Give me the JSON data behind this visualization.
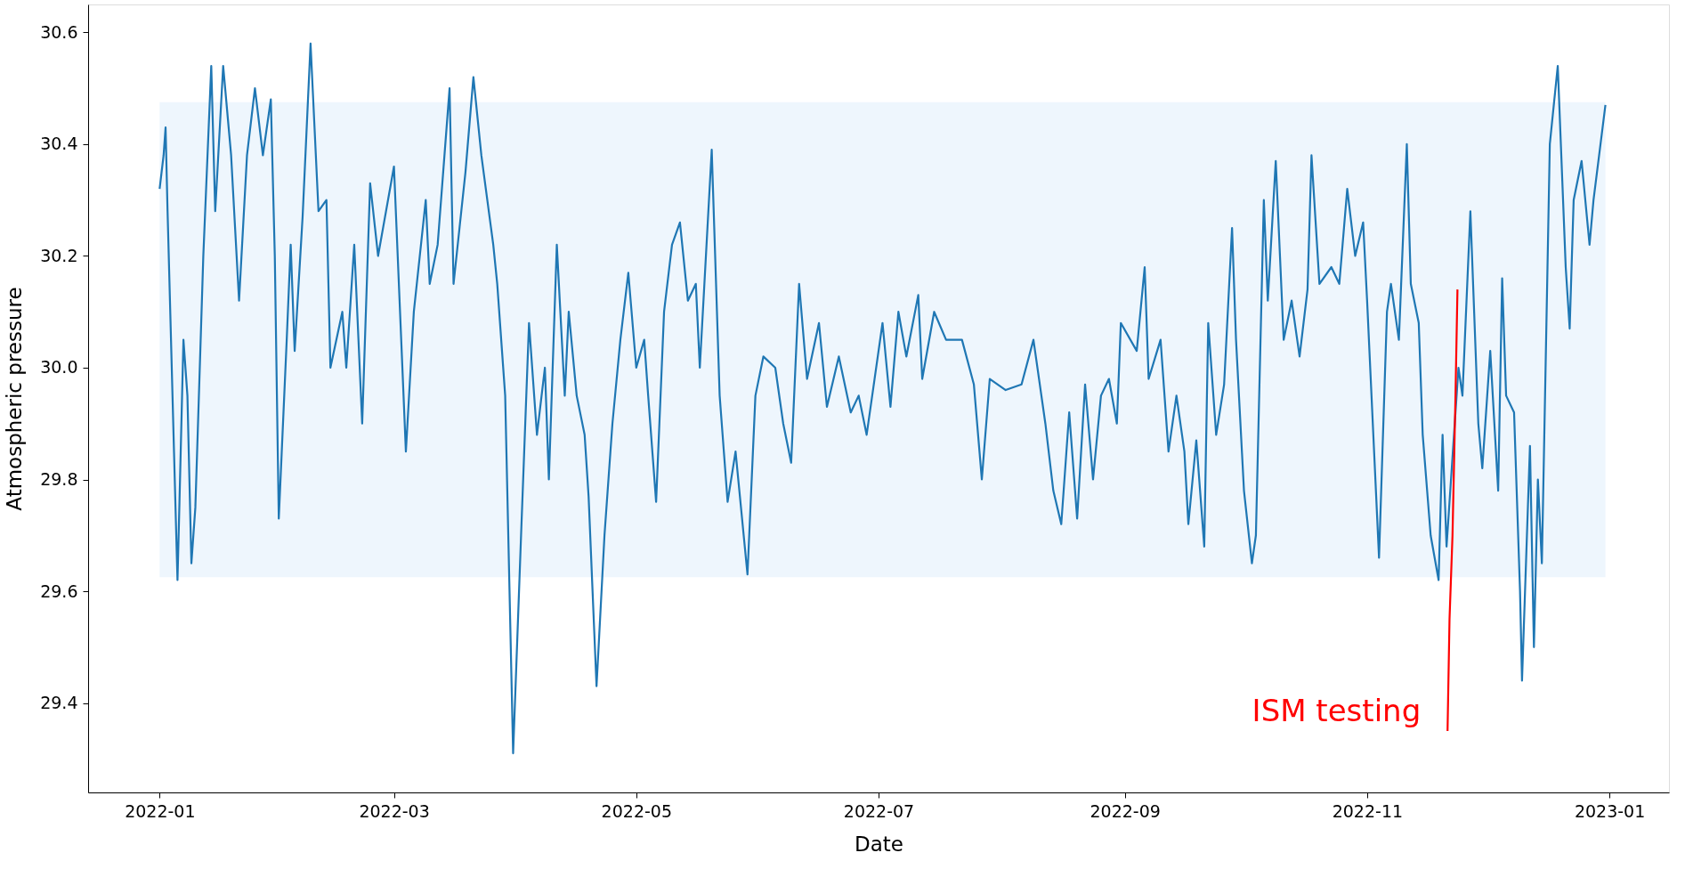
{
  "chart_data": {
    "type": "line",
    "xlabel": "Date",
    "ylabel": "Atmospheric pressure",
    "xlim": [
      "2021-12-14",
      "2023-01-16"
    ],
    "ylim": [
      29.24,
      30.65
    ],
    "xticks": [
      {
        "value": "2022-01-01",
        "label": "2022-01"
      },
      {
        "value": "2022-03-01",
        "label": "2022-03"
      },
      {
        "value": "2022-05-01",
        "label": "2022-05"
      },
      {
        "value": "2022-07-01",
        "label": "2022-07"
      },
      {
        "value": "2022-09-01",
        "label": "2022-09"
      },
      {
        "value": "2022-11-01",
        "label": "2022-11"
      },
      {
        "value": "2023-01-01",
        "label": "2023-01"
      }
    ],
    "yticks": [
      29.4,
      29.6,
      29.8,
      {
        "value": 30.0,
        "label": "30.0"
      },
      30.2,
      30.4,
      30.6
    ],
    "grid": false,
    "line_style": "solid",
    "marker": "none",
    "bands": [
      {
        "axis": "y",
        "from": 29.625,
        "to": 30.475,
        "color": "#eef6fd"
      }
    ],
    "series": [
      {
        "color": "#1f77b4",
        "x": [
          "2022-01-01",
          "2022-01-02",
          "2022-01-02T12:00",
          "2022-01-03",
          "2022-01-05",
          "2022-01-05T12:00",
          "2022-01-06",
          "2022-01-07",
          "2022-01-08",
          "2022-01-09",
          "2022-01-10",
          "2022-01-12",
          "2022-01-14",
          "2022-01-15",
          "2022-01-17",
          "2022-01-19",
          "2022-01-21",
          "2022-01-23",
          "2022-01-25",
          "2022-01-27",
          "2022-01-29",
          "2022-01-30",
          "2022-01-31",
          "2022-02-02",
          "2022-02-03",
          "2022-02-04",
          "2022-02-06",
          "2022-02-08",
          "2022-02-10",
          "2022-02-12",
          "2022-02-13",
          "2022-02-16",
          "2022-02-17",
          "2022-02-19",
          "2022-02-21",
          "2022-02-23",
          "2022-02-25",
          "2022-02-27",
          "2022-03-01",
          "2022-03-04",
          "2022-03-06",
          "2022-03-09",
          "2022-03-10",
          "2022-03-12",
          "2022-03-15",
          "2022-03-16",
          "2022-03-19",
          "2022-03-21",
          "2022-03-23",
          "2022-03-26",
          "2022-03-27",
          "2022-03-29",
          "2022-03-31",
          "2022-04-02",
          "2022-04-04",
          "2022-04-06",
          "2022-04-08",
          "2022-04-09",
          "2022-04-11",
          "2022-04-13",
          "2022-04-14",
          "2022-04-16",
          "2022-04-18",
          "2022-04-19",
          "2022-04-21",
          "2022-04-23",
          "2022-04-25",
          "2022-04-27",
          "2022-04-29",
          "2022-05-01",
          "2022-05-03",
          "2022-05-04",
          "2022-05-06",
          "2022-05-08",
          "2022-05-10",
          "2022-05-12",
          "2022-05-14",
          "2022-05-16",
          "2022-05-17",
          "2022-05-20",
          "2022-05-22",
          "2022-05-24",
          "2022-05-26",
          "2022-05-29",
          "2022-05-31",
          "2022-06-02",
          "2022-06-05",
          "2022-06-07",
          "2022-06-09",
          "2022-06-11",
          "2022-06-13",
          "2022-06-16",
          "2022-06-18",
          "2022-06-21",
          "2022-06-24",
          "2022-06-26",
          "2022-06-28",
          "2022-06-30",
          "2022-07-02",
          "2022-07-04",
          "2022-07-06",
          "2022-07-08",
          "2022-07-11",
          "2022-07-12",
          "2022-07-15",
          "2022-07-18",
          "2022-07-22",
          "2022-07-25",
          "2022-07-27",
          "2022-07-29",
          "2022-08-02",
          "2022-08-06",
          "2022-08-09",
          "2022-08-12",
          "2022-08-14",
          "2022-08-16",
          "2022-08-18",
          "2022-08-20",
          "2022-08-22",
          "2022-08-24",
          "2022-08-26",
          "2022-08-28",
          "2022-08-30",
          "2022-08-31",
          "2022-09-04",
          "2022-09-06",
          "2022-09-07",
          "2022-09-10",
          "2022-09-12",
          "2022-09-14",
          "2022-09-16",
          "2022-09-17",
          "2022-09-19",
          "2022-09-21",
          "2022-09-22",
          "2022-09-24",
          "2022-09-26",
          "2022-09-28",
          "2022-09-29",
          "2022-10-01",
          "2022-10-03",
          "2022-10-04",
          "2022-10-06",
          "2022-10-07",
          "2022-10-09",
          "2022-10-11",
          "2022-10-13",
          "2022-10-15",
          "2022-10-17",
          "2022-10-18",
          "2022-10-20",
          "2022-10-23",
          "2022-10-25",
          "2022-10-27",
          "2022-10-29",
          "2022-10-31",
          "2022-11-01",
          "2022-11-04",
          "2022-11-06",
          "2022-11-07",
          "2022-11-09",
          "2022-11-11",
          "2022-11-12",
          "2022-11-14",
          "2022-11-15",
          "2022-11-17",
          "2022-11-19",
          "2022-11-20",
          "2022-11-21",
          "2022-11-24",
          "2022-11-25",
          "2022-11-27",
          "2022-11-29",
          "2022-11-30",
          "2022-12-02",
          "2022-12-04",
          "2022-12-05",
          "2022-12-06",
          "2022-12-08",
          "2022-12-09T12:00",
          "2022-12-10",
          "2022-12-12",
          "2022-12-13",
          "2022-12-14",
          "2022-12-15",
          "2022-12-17",
          "2022-12-19",
          "2022-12-21",
          "2022-12-22",
          "2022-12-23",
          "2022-12-25",
          "2022-12-27",
          "2022-12-28",
          "2022-12-31"
        ],
        "values": [
          30.32,
          30.38,
          30.43,
          30.28,
          29.75,
          29.62,
          29.76,
          30.05,
          29.95,
          29.65,
          29.75,
          30.2,
          30.54,
          30.28,
          30.54,
          30.38,
          30.12,
          30.38,
          30.5,
          30.38,
          30.48,
          30.2,
          29.73,
          30.05,
          30.22,
          30.03,
          30.27,
          30.58,
          30.28,
          30.3,
          30.0,
          30.1,
          30.0,
          30.22,
          29.9,
          30.33,
          30.2,
          30.28,
          30.36,
          29.85,
          30.1,
          30.3,
          30.15,
          30.22,
          30.5,
          30.15,
          30.35,
          30.52,
          30.38,
          30.22,
          30.15,
          29.95,
          29.31,
          29.7,
          30.08,
          29.88,
          30.0,
          29.8,
          30.22,
          29.95,
          30.1,
          29.95,
          29.88,
          29.77,
          29.43,
          29.7,
          29.9,
          30.05,
          30.17,
          30.0,
          30.05,
          29.95,
          29.76,
          30.1,
          30.22,
          30.26,
          30.12,
          30.15,
          30.0,
          30.39,
          29.95,
          29.76,
          29.85,
          29.63,
          29.95,
          30.02,
          30.0,
          29.9,
          29.83,
          30.15,
          29.98,
          30.08,
          29.93,
          30.02,
          29.92,
          29.95,
          29.88,
          29.98,
          30.08,
          29.93,
          30.1,
          30.02,
          30.13,
          29.98,
          30.1,
          30.05,
          30.05,
          29.97,
          29.8,
          29.98,
          29.96,
          29.97,
          30.05,
          29.9,
          29.78,
          29.72,
          29.92,
          29.73,
          29.97,
          29.8,
          29.95,
          29.98,
          29.9,
          30.08,
          30.03,
          30.18,
          29.98,
          30.05,
          29.85,
          29.95,
          29.85,
          29.72,
          29.87,
          29.68,
          30.08,
          29.88,
          29.97,
          30.25,
          30.05,
          29.78,
          29.65,
          29.7,
          30.3,
          30.12,
          30.37,
          30.05,
          30.12,
          30.02,
          30.14,
          30.38,
          30.15,
          30.18,
          30.15,
          30.32,
          30.2,
          30.26,
          30.12,
          29.66,
          30.1,
          30.15,
          30.05,
          30.4,
          30.15,
          30.08,
          29.88,
          29.7,
          29.62,
          29.88,
          29.68,
          30.0,
          29.95,
          30.28,
          29.9,
          29.82,
          30.03,
          29.78,
          30.16,
          29.95,
          29.92,
          29.6,
          29.44,
          29.86,
          29.5,
          29.8,
          29.65,
          30.4,
          30.54,
          30.18,
          30.07,
          30.3,
          30.37,
          30.22,
          30.3,
          30.47
        ]
      },
      {
        "name": "ISM testing",
        "color": "#ff0000",
        "x": [
          "2022-11-21T06:00",
          "2022-11-21T18:00",
          "2022-11-22T12:00",
          "2022-11-23T06:00",
          "2022-11-23T18:00"
        ],
        "values": [
          29.35,
          29.55,
          29.7,
          29.95,
          30.14
        ]
      }
    ]
  }
}
